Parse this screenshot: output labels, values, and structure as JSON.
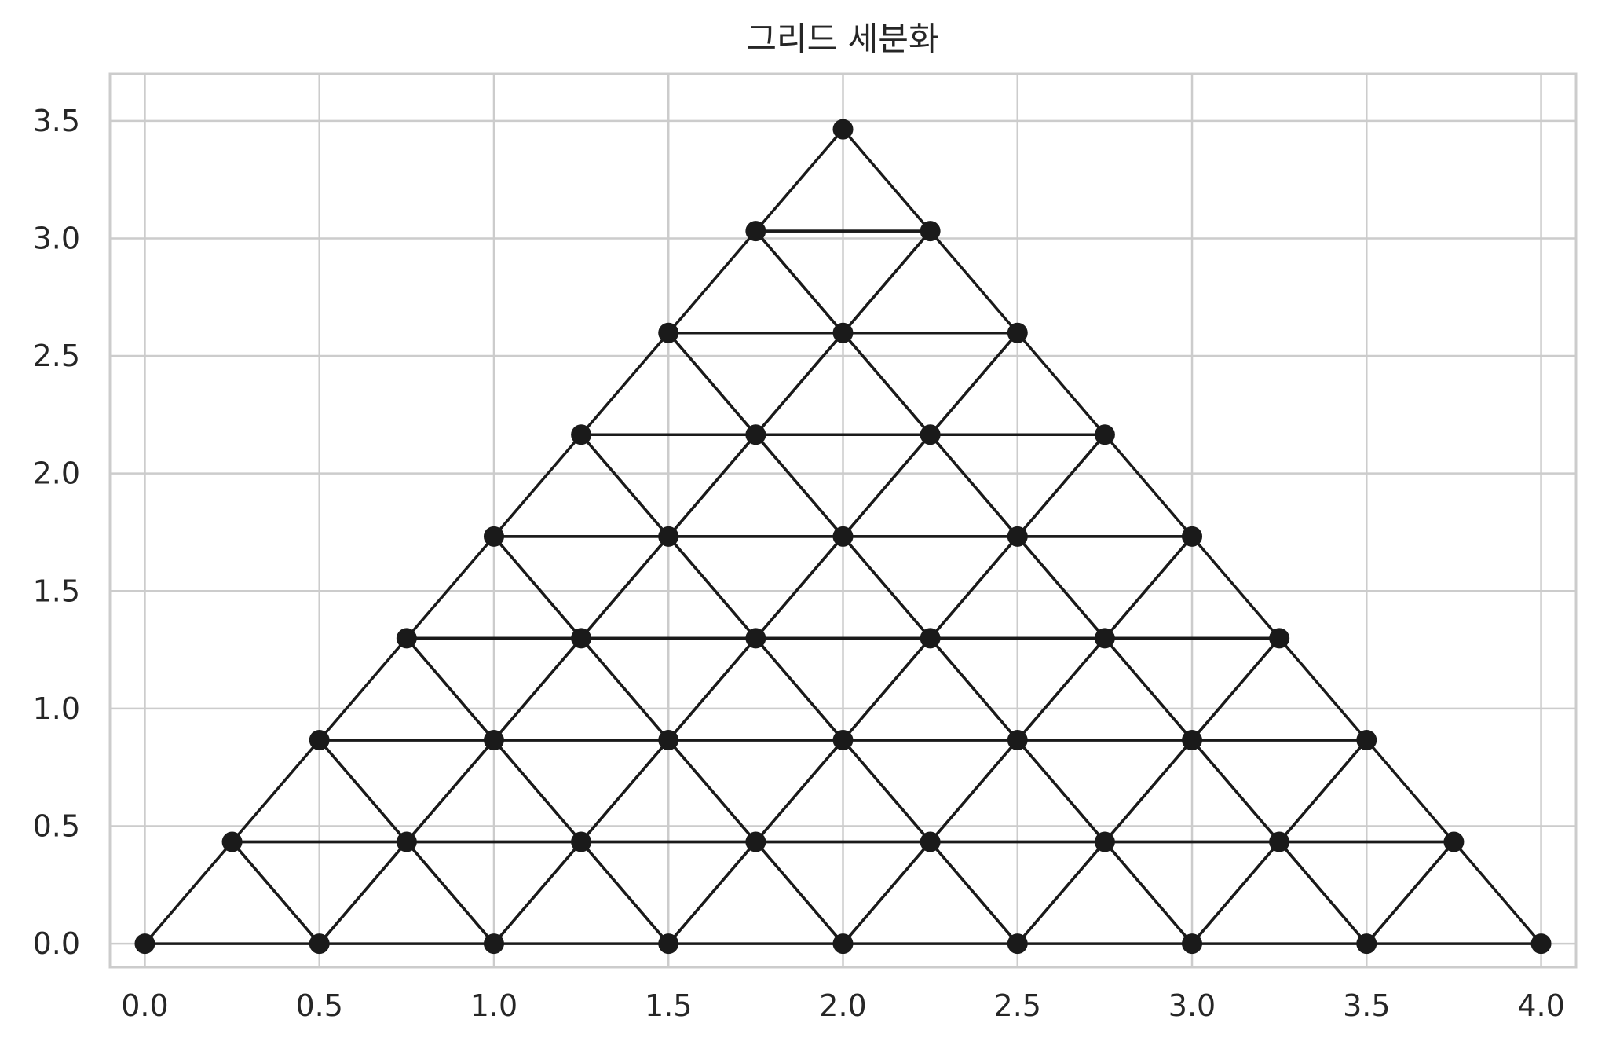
{
  "chart_data": {
    "type": "scatter",
    "title": "그리드 세분화",
    "xlabel": "",
    "ylabel": "",
    "xlim": [
      -0.1,
      4.1
    ],
    "ylim": [
      -0.1,
      3.7
    ],
    "x_ticks": [
      "0.0",
      "0.5",
      "1.0",
      "1.5",
      "2.0",
      "2.5",
      "3.0",
      "3.5",
      "4.0"
    ],
    "y_ticks": [
      "0.0",
      "0.5",
      "1.0",
      "1.5",
      "2.0",
      "2.5",
      "3.0",
      "3.5"
    ],
    "grid": true,
    "subdivisions": 8,
    "triangle_vertices": [
      [
        0,
        0
      ],
      [
        4,
        0
      ],
      [
        2,
        3.4641
      ]
    ],
    "marker_color": "#1a1a1a",
    "line_color": "#1a1a1a",
    "grid_color": "#cccccc",
    "frame_color": "#cccccc"
  }
}
